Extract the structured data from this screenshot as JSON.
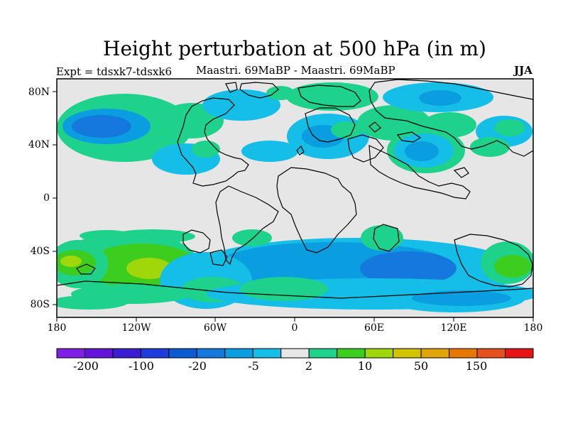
{
  "header": {
    "title": "Height perturbation at 500 hPa (in m)",
    "expt": "Expt = tdsxk7-tdsxk6",
    "subtitle": "Maastri.  69MaBP - Maastri.  69MaBP",
    "season": "JJA"
  },
  "axes": {
    "lat_ticks": [
      "80N",
      "40N",
      "0",
      "40S",
      "80S"
    ],
    "lon_ticks": [
      "180",
      "120W",
      "60W",
      "0",
      "60E",
      "120E",
      "180"
    ]
  },
  "colorbar": {
    "colors": [
      "#7f1fe6",
      "#6414d8",
      "#3c1ed2",
      "#1e3cdc",
      "#0a5ad2",
      "#1478dc",
      "#0a9ee0",
      "#14bee6",
      "#e6e6e6",
      "#1ed28c",
      "#3ccd1e",
      "#a0d70a",
      "#d2c300",
      "#e1a50a",
      "#e67800",
      "#e6501e",
      "#e61414"
    ],
    "labels": [
      "-200",
      "-100",
      "-20",
      "-5",
      "2",
      "10",
      "50",
      "150"
    ]
  },
  "palette": {
    "neutral": "#e6e6e6",
    "cyan": "#14bee6",
    "blue1": "#0a9ee0",
    "blue2": "#1478dc",
    "green": "#1ed28c",
    "lime": "#3ccd1e",
    "yellowgreen": "#a0d70a",
    "coast": "#000000"
  }
}
